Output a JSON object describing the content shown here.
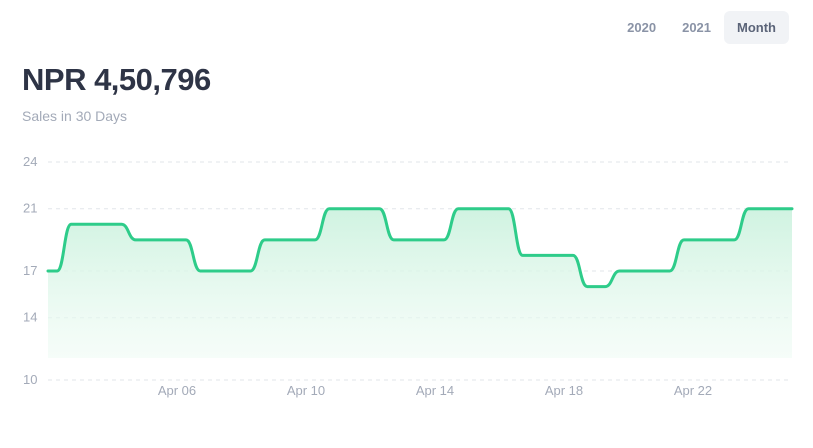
{
  "range_tabs": [
    {
      "label": "2020",
      "active": false
    },
    {
      "label": "2021",
      "active": false
    },
    {
      "label": "Month",
      "active": true
    }
  ],
  "summary": {
    "value": "NPR 4,50,796",
    "caption": "Sales in 30 Days"
  },
  "colors": {
    "line": "#2ecc8a",
    "fill": "#d8f5e6",
    "grid": "#e2e5ea"
  },
  "chart_data": {
    "type": "area",
    "title": "",
    "xlabel": "",
    "ylabel": "",
    "ylim": [
      10,
      24
    ],
    "y_ticks": [
      10,
      14,
      17,
      21,
      24
    ],
    "x_tick_labels": [
      "Apr 06",
      "Apr 10",
      "Apr 14",
      "Apr 18",
      "Apr 22"
    ],
    "x_tick_days": [
      6,
      10,
      14,
      18,
      22
    ],
    "grid": true,
    "series": [
      {
        "x": [
          2,
          3,
          4,
          5,
          6,
          7,
          8,
          9,
          10,
          11,
          12,
          13,
          14,
          15,
          16,
          17,
          18,
          19,
          20,
          21,
          22,
          23,
          24,
          25
        ],
        "values": [
          17,
          20,
          20,
          19,
          19,
          17,
          17,
          19,
          19,
          21,
          21,
          19,
          19,
          21,
          21,
          18,
          18,
          16,
          17,
          17,
          19,
          19,
          21,
          21
        ]
      }
    ]
  }
}
